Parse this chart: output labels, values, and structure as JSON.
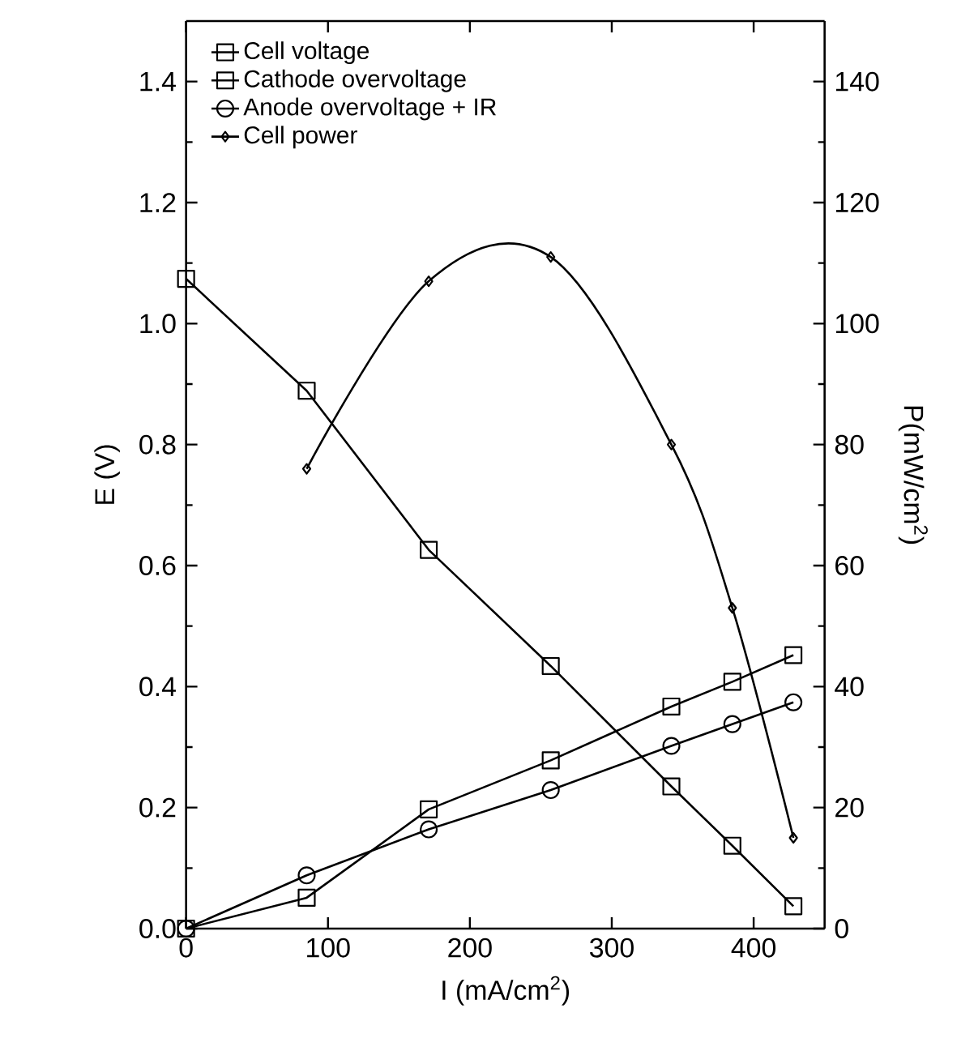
{
  "chart_data": {
    "type": "line",
    "xlabel": "I (mA/cm$^{2}$)",
    "ylabel": "E (V)",
    "y2label": "P(mW/cm$^{2}$)",
    "x": [
      0,
      85,
      171,
      257,
      342,
      385,
      428
    ],
    "series": [
      {
        "name": "Cell voltage",
        "color": "#000000",
        "marker": "square",
        "values": [
          1.074,
          0.889,
          0.626,
          0.434,
          0.235,
          0.137,
          0.037
        ]
      },
      {
        "name": "Cathode overvoltage",
        "color": "#000000",
        "marker": "square",
        "values": [
          0,
          0.051,
          0.197,
          0.278,
          0.367,
          0.408,
          0.452
        ]
      },
      {
        "name": "Anode overvoltage + IR",
        "color": "#000000",
        "marker": "circle",
        "values": [
          0,
          0.088,
          0.164,
          0.229,
          0.302,
          0.338,
          0.374
        ]
      },
      {
        "name": "Cell power",
        "color": "#000000",
        "marker": "diamond",
        "axis": "y2",
        "values": [
          null,
          76,
          107,
          111,
          80,
          53,
          15
        ]
      }
    ],
    "xlim": [
      0,
      450
    ],
    "xticks": [
      0,
      100,
      200,
      300,
      400
    ],
    "ylim": [
      0,
      1.5
    ],
    "yticks": [
      {
        "value": 0,
        "label": "0.0"
      },
      {
        "value": 0.2,
        "label": "0.2"
      },
      {
        "value": 0.4,
        "label": "0.4"
      },
      {
        "value": 0.6,
        "label": "0.6"
      },
      {
        "value": 0.8,
        "label": "0.8"
      },
      {
        "value": 1.0,
        "label": "1.0"
      },
      {
        "value": 1.2,
        "label": "1.2"
      },
      {
        "value": 1.4,
        "label": "1.4"
      }
    ],
    "y2lim": [
      0,
      150
    ],
    "y2ticks": [
      0,
      20,
      40,
      60,
      80,
      100,
      120,
      140
    ],
    "grid": false,
    "legend": "top left",
    "line_style": "solid"
  }
}
